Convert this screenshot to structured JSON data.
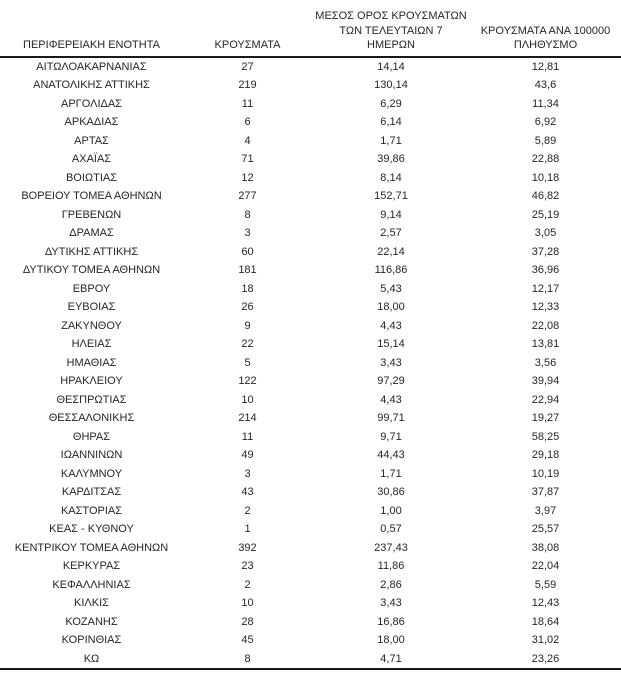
{
  "colors": {
    "background": "#ffffff",
    "text": "#262626",
    "rule": "#1a1a1a"
  },
  "table": {
    "headers": [
      {
        "label": "ΠΕΡΙΦΕΡΕΙΑΚΗ ΕΝΟΤΗΤΑ"
      },
      {
        "label": "ΚΡΟΥΣΜΑΤΑ"
      },
      {
        "label": "ΜΕΣΟΣ ΟΡΟΣ ΚΡΟΥΣΜΑΤΩΝ\nΤΩΝ ΤΕΛΕΥΤΑΙΩΝ 7\nΗΜΕΡΩΝ"
      },
      {
        "label": "ΚΡΟΥΣΜΑΤΑ ΑΝΑ 100000\nΠΛΗΘΥΣΜΟ"
      }
    ],
    "rows": [
      {
        "region": "ΑΙΤΩΛΟΑΚΑΡΝΑΝΙΑΣ",
        "cases": "27",
        "avg7": "14,14",
        "per100k": "12,81"
      },
      {
        "region": "ΑΝΑΤΟΛΙΚΗΣ ΑΤΤΙΚΗΣ",
        "cases": "219",
        "avg7": "130,14",
        "per100k": "43,6"
      },
      {
        "region": "ΑΡΓΟΛΙΔΑΣ",
        "cases": "11",
        "avg7": "6,29",
        "per100k": "11,34"
      },
      {
        "region": "ΑΡΚΑΔΙΑΣ",
        "cases": "6",
        "avg7": "6,14",
        "per100k": "6,92"
      },
      {
        "region": "ΑΡΤΑΣ",
        "cases": "4",
        "avg7": "1,71",
        "per100k": "5,89"
      },
      {
        "region": "ΑΧΑΪΑΣ",
        "cases": "71",
        "avg7": "39,86",
        "per100k": "22,88"
      },
      {
        "region": "ΒΟΙΩΤΙΑΣ",
        "cases": "12",
        "avg7": "8,14",
        "per100k": "10,18"
      },
      {
        "region": "ΒΟΡΕΙΟΥ ΤΟΜΕΑ ΑΘΗΝΩΝ",
        "cases": "277",
        "avg7": "152,71",
        "per100k": "46,82"
      },
      {
        "region": "ΓΡΕΒΕΝΩΝ",
        "cases": "8",
        "avg7": "9,14",
        "per100k": "25,19"
      },
      {
        "region": "ΔΡΑΜΑΣ",
        "cases": "3",
        "avg7": "2,57",
        "per100k": "3,05"
      },
      {
        "region": "ΔΥΤΙΚΗΣ ΑΤΤΙΚΗΣ",
        "cases": "60",
        "avg7": "22,14",
        "per100k": "37,28"
      },
      {
        "region": "ΔΥΤΙΚΟΥ ΤΟΜΕΑ ΑΘΗΝΩΝ",
        "cases": "181",
        "avg7": "116,86",
        "per100k": "36,96"
      },
      {
        "region": "ΕΒΡΟΥ",
        "cases": "18",
        "avg7": "5,43",
        "per100k": "12,17"
      },
      {
        "region": "ΕΥΒΟΙΑΣ",
        "cases": "26",
        "avg7": "18,00",
        "per100k": "12,33"
      },
      {
        "region": "ΖΑΚΥΝΘΟΥ",
        "cases": "9",
        "avg7": "4,43",
        "per100k": "22,08"
      },
      {
        "region": "ΗΛΕΙΑΣ",
        "cases": "22",
        "avg7": "15,14",
        "per100k": "13,81"
      },
      {
        "region": "ΗΜΑΘΙΑΣ",
        "cases": "5",
        "avg7": "3,43",
        "per100k": "3,56"
      },
      {
        "region": "ΗΡΑΚΛΕΙΟΥ",
        "cases": "122",
        "avg7": "97,29",
        "per100k": "39,94"
      },
      {
        "region": "ΘΕΣΠΡΩΤΙΑΣ",
        "cases": "10",
        "avg7": "4,43",
        "per100k": "22,94"
      },
      {
        "region": "ΘΕΣΣΑΛΟΝΙΚΗΣ",
        "cases": "214",
        "avg7": "99,71",
        "per100k": "19,27"
      },
      {
        "region": "ΘΗΡΑΣ",
        "cases": "11",
        "avg7": "9,71",
        "per100k": "58,25"
      },
      {
        "region": "ΙΩΑΝΝΙΝΩΝ",
        "cases": "49",
        "avg7": "44,43",
        "per100k": "29,18"
      },
      {
        "region": "ΚΑΛΥΜΝΟΥ",
        "cases": "3",
        "avg7": "1,71",
        "per100k": "10,19"
      },
      {
        "region": "ΚΑΡΔΙΤΣΑΣ",
        "cases": "43",
        "avg7": "30,86",
        "per100k": "37,87"
      },
      {
        "region": "ΚΑΣΤΟΡΙΑΣ",
        "cases": "2",
        "avg7": "1,00",
        "per100k": "3,97"
      },
      {
        "region": "ΚΕΑΣ - ΚΥΘΝΟΥ",
        "cases": "1",
        "avg7": "0,57",
        "per100k": "25,57"
      },
      {
        "region": "ΚΕΝΤΡΙΚΟΥ ΤΟΜΕΑ ΑΘΗΝΩΝ",
        "cases": "392",
        "avg7": "237,43",
        "per100k": "38,08"
      },
      {
        "region": "ΚΕΡΚΥΡΑΣ",
        "cases": "23",
        "avg7": "11,86",
        "per100k": "22,04"
      },
      {
        "region": "ΚΕΦΑΛΛΗΝΙΑΣ",
        "cases": "2",
        "avg7": "2,86",
        "per100k": "5,59"
      },
      {
        "region": "ΚΙΛΚΙΣ",
        "cases": "10",
        "avg7": "3,43",
        "per100k": "12,43"
      },
      {
        "region": "ΚΟΖΑΝΗΣ",
        "cases": "28",
        "avg7": "16,86",
        "per100k": "18,64"
      },
      {
        "region": "ΚΟΡΙΝΘΙΑΣ",
        "cases": "45",
        "avg7": "18,00",
        "per100k": "31,02"
      },
      {
        "region": "ΚΩ",
        "cases": "8",
        "avg7": "4,71",
        "per100k": "23,26"
      }
    ]
  }
}
